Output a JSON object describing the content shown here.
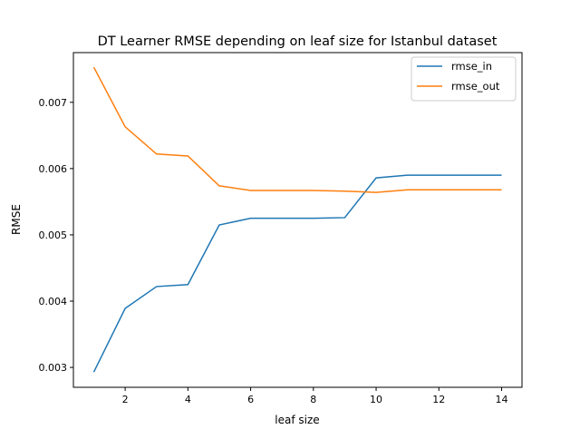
{
  "chart_data": {
    "type": "line",
    "title": "DT Learner RMSE depending on leaf size for Istanbul dataset",
    "xlabel": "leaf size",
    "ylabel": "RMSE",
    "x": [
      1,
      2,
      3,
      4,
      5,
      6,
      7,
      8,
      9,
      10,
      11,
      12,
      13,
      14
    ],
    "series": [
      {
        "name": "rmse_in",
        "color": "#1f77b4",
        "values": [
          0.00293,
          0.00389,
          0.00422,
          0.00425,
          0.00515,
          0.00525,
          0.00525,
          0.00525,
          0.00526,
          0.00586,
          0.0059,
          0.0059,
          0.0059,
          0.0059
        ]
      },
      {
        "name": "rmse_out",
        "color": "#ff7f0e",
        "values": [
          0.00753,
          0.00663,
          0.00622,
          0.00619,
          0.00574,
          0.00567,
          0.00567,
          0.00567,
          0.00566,
          0.00564,
          0.00568,
          0.00568,
          0.00568,
          0.00568
        ]
      }
    ],
    "xlim": [
      0.35,
      14.65
    ],
    "ylim": [
      0.0027,
      0.00775
    ],
    "xticks": [
      "2",
      "4",
      "6",
      "8",
      "10",
      "12",
      "14"
    ],
    "yticks": [
      "0.003",
      "0.004",
      "0.005",
      "0.006",
      "0.007"
    ],
    "grid": false,
    "legend": "top-right"
  }
}
